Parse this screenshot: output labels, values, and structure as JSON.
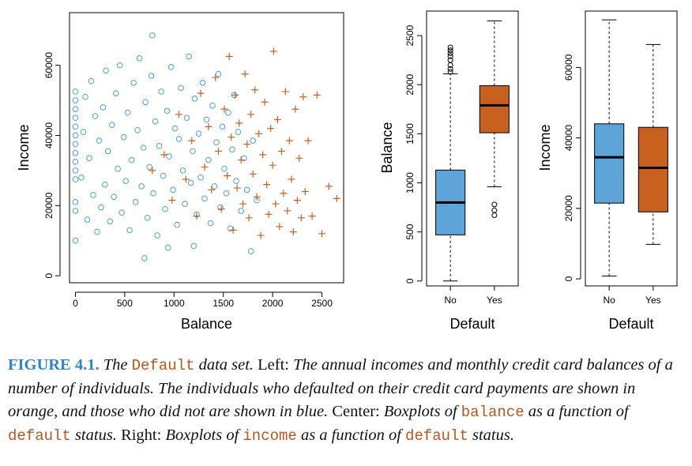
{
  "chart_data": [
    {
      "type": "scatter",
      "title": "",
      "xlabel": "Balance",
      "ylabel": "Income",
      "xticks": [
        "0",
        "500",
        "1000",
        "1500",
        "2000",
        "2500"
      ],
      "yticks": [
        "0",
        "20000",
        "40000",
        "60000"
      ],
      "xlim": [
        -60,
        2720
      ],
      "ylim": [
        -2000,
        75000
      ],
      "grid": false,
      "legend": "none",
      "series": [
        {
          "marker": "circle",
          "color": "#4b9fd5",
          "points": [
            [
              0,
              10000
            ],
            [
              0,
              18500
            ],
            [
              0,
              21000
            ],
            [
              0,
              27500
            ],
            [
              0,
              30000
            ],
            [
              0,
              32500
            ],
            [
              0,
              35000
            ],
            [
              0,
              37500
            ],
            [
              0,
              40000
            ],
            [
              0,
              42500
            ],
            [
              0,
              45000
            ],
            [
              0,
              47500
            ],
            [
              0,
              50000
            ],
            [
              0,
              52500
            ],
            [
              60,
              28000
            ],
            [
              80,
              41000
            ],
            [
              100,
              51000
            ],
            [
              120,
              16000
            ],
            [
              140,
              33500
            ],
            [
              160,
              55500
            ],
            [
              180,
              23000
            ],
            [
              200,
              45500
            ],
            [
              220,
              12500
            ],
            [
              240,
              38500
            ],
            [
              260,
              19500
            ],
            [
              280,
              48000
            ],
            [
              300,
              26000
            ],
            [
              310,
              58500
            ],
            [
              330,
              35500
            ],
            [
              350,
              15500
            ],
            [
              370,
              43000
            ],
            [
              390,
              22500
            ],
            [
              410,
              52000
            ],
            [
              430,
              30500
            ],
            [
              450,
              60000
            ],
            [
              470,
              18000
            ],
            [
              490,
              39500
            ],
            [
              510,
              27000
            ],
            [
              530,
              46500
            ],
            [
              550,
              13000
            ],
            [
              570,
              33000
            ],
            [
              590,
              55000
            ],
            [
              610,
              21000
            ],
            [
              630,
              41500
            ],
            [
              650,
              62000
            ],
            [
              670,
              25500
            ],
            [
              690,
              36500
            ],
            [
              700,
              5000
            ],
            [
              710,
              49500
            ],
            [
              730,
              16500
            ],
            [
              750,
              31000
            ],
            [
              770,
              57000
            ],
            [
              780,
              68500
            ],
            [
              790,
              23500
            ],
            [
              810,
              44000
            ],
            [
              830,
              11500
            ],
            [
              850,
              37000
            ],
            [
              870,
              52500
            ],
            [
              890,
              28500
            ],
            [
              910,
              19000
            ],
            [
              930,
              47000
            ],
            [
              940,
              8000
            ],
            [
              950,
              34000
            ],
            [
              970,
              59500
            ],
            [
              990,
              24500
            ],
            [
              1010,
              42000
            ],
            [
              1030,
              14500
            ],
            [
              1050,
              39000
            ],
            [
              1070,
              53500
            ],
            [
              1090,
              30000
            ],
            [
              1110,
              20500
            ],
            [
              1130,
              45000
            ],
            [
              1150,
              62500
            ],
            [
              1170,
              26500
            ],
            [
              1190,
              35500
            ],
            [
              1200,
              8500
            ],
            [
              1210,
              50500
            ],
            [
              1230,
              17500
            ],
            [
              1250,
              40500
            ],
            [
              1270,
              28000
            ],
            [
              1290,
              55000
            ],
            [
              1310,
              22000
            ],
            [
              1330,
              44500
            ],
            [
              1350,
              33000
            ],
            [
              1370,
              15000
            ],
            [
              1390,
              48500
            ],
            [
              1410,
              25500
            ],
            [
              1430,
              38000
            ],
            [
              1450,
              57500
            ],
            [
              1470,
              19500
            ],
            [
              1490,
              42500
            ],
            [
              1510,
              30500
            ],
            [
              1530,
              23500
            ],
            [
              1550,
              46500
            ],
            [
              1570,
              13500
            ],
            [
              1590,
              36000
            ],
            [
              1610,
              51500
            ],
            [
              1630,
              27000
            ],
            [
              1650,
              41000
            ],
            [
              1680,
              18500
            ],
            [
              1710,
              33500
            ],
            [
              1740,
              24500
            ],
            [
              1780,
              7000
            ],
            [
              1800,
              38500
            ],
            [
              1840,
              21500
            ]
          ]
        },
        {
          "marker": "plus",
          "color": "#c8611f",
          "points": [
            [
              780,
              30000
            ],
            [
              900,
              34500
            ],
            [
              980,
              21500
            ],
            [
              1050,
              46000
            ],
            [
              1120,
              27500
            ],
            [
              1180,
              38500
            ],
            [
              1230,
              17000
            ],
            [
              1270,
              52000
            ],
            [
              1310,
              31000
            ],
            [
              1350,
              42500
            ],
            [
              1380,
              24500
            ],
            [
              1420,
              56500
            ],
            [
              1450,
              35500
            ],
            [
              1480,
              19000
            ],
            [
              1510,
              47500
            ],
            [
              1540,
              28500
            ],
            [
              1560,
              62500
            ],
            [
              1580,
              39500
            ],
            [
              1600,
              13000
            ],
            [
              1620,
              51500
            ],
            [
              1640,
              25000
            ],
            [
              1660,
              43500
            ],
            [
              1680,
              33000
            ],
            [
              1700,
              20500
            ],
            [
              1720,
              57500
            ],
            [
              1740,
              37500
            ],
            [
              1760,
              16500
            ],
            [
              1780,
              46000
            ],
            [
              1800,
              29000
            ],
            [
              1820,
              53000
            ],
            [
              1840,
              22500
            ],
            [
              1860,
              40500
            ],
            [
              1880,
              11500
            ],
            [
              1900,
              34500
            ],
            [
              1920,
              49500
            ],
            [
              1940,
              26000
            ],
            [
              1960,
              17500
            ],
            [
              1980,
              42000
            ],
            [
              2000,
              31500
            ],
            [
              2010,
              64000
            ],
            [
              2030,
              20500
            ],
            [
              2050,
              44500
            ],
            [
              2070,
              14000
            ],
            [
              2090,
              35500
            ],
            [
              2110,
              23500
            ],
            [
              2130,
              52500
            ],
            [
              2150,
              18500
            ],
            [
              2170,
              38500
            ],
            [
              2190,
              27500
            ],
            [
              2210,
              12500
            ],
            [
              2230,
              47500
            ],
            [
              2250,
              21500
            ],
            [
              2270,
              33500
            ],
            [
              2290,
              16500
            ],
            [
              2310,
              51000
            ],
            [
              2330,
              24000
            ],
            [
              2360,
              38500
            ],
            [
              2400,
              17000
            ],
            [
              2450,
              51500
            ],
            [
              2500,
              12000
            ],
            [
              2570,
              25500
            ],
            [
              2650,
              22000
            ]
          ]
        }
      ]
    },
    {
      "type": "boxplot",
      "xlabel": "Default",
      "ylabel": "Balance",
      "categories": [
        "No",
        "Yes"
      ],
      "yticks": [
        "0",
        "500",
        "1000",
        "1500",
        "2000",
        "2500"
      ],
      "ylim": [
        -50,
        2750
      ],
      "boxes": [
        {
          "name": "No",
          "color": "#5ea4d8",
          "whisker_low": 0,
          "q1": 470,
          "median": 800,
          "q3": 1130,
          "whisker_high": 2110,
          "outliers": [
            2130,
            2160,
            2200,
            2250,
            2290,
            2320,
            2350,
            2380
          ]
        },
        {
          "name": "Yes",
          "color": "#c8611f",
          "whisker_low": 960,
          "q1": 1510,
          "median": 1790,
          "q3": 1990,
          "whisker_high": 2650,
          "outliers": [
            670,
            720,
            780
          ]
        }
      ]
    },
    {
      "type": "boxplot",
      "xlabel": "Default",
      "ylabel": "Income",
      "categories": [
        "No",
        "Yes"
      ],
      "yticks": [
        "0",
        "20000",
        "40000",
        "60000"
      ],
      "ylim": [
        -2000,
        76000
      ],
      "boxes": [
        {
          "name": "No",
          "color": "#5ea4d8",
          "whisker_low": 800,
          "q1": 21500,
          "median": 34500,
          "q3": 44000,
          "whisker_high": 73500,
          "outliers": []
        },
        {
          "name": "Yes",
          "color": "#c8611f",
          "whisker_low": 9800,
          "q1": 19000,
          "median": 31500,
          "q3": 43000,
          "whisker_high": 66500,
          "outliers": []
        }
      ]
    }
  ],
  "caption": {
    "lead": "FIGURE 4.1.",
    "p1": "The",
    "c1": "Default",
    "p2": "data set.",
    "p3": "Left:",
    "p4": "The annual incomes and monthly credit card balances of a number of individuals. The individuals who defaulted on their credit card payments are shown in orange, and those who did not are shown in blue.",
    "p5": "Center:",
    "p6": "Boxplots of",
    "c2": "balance",
    "p7": "as a function of",
    "c3": "default",
    "p8": "status.",
    "p9": "Right:",
    "p10": "Boxplots of",
    "c4": "income",
    "p11": "as a function of",
    "c5": "default",
    "p12": "status."
  }
}
